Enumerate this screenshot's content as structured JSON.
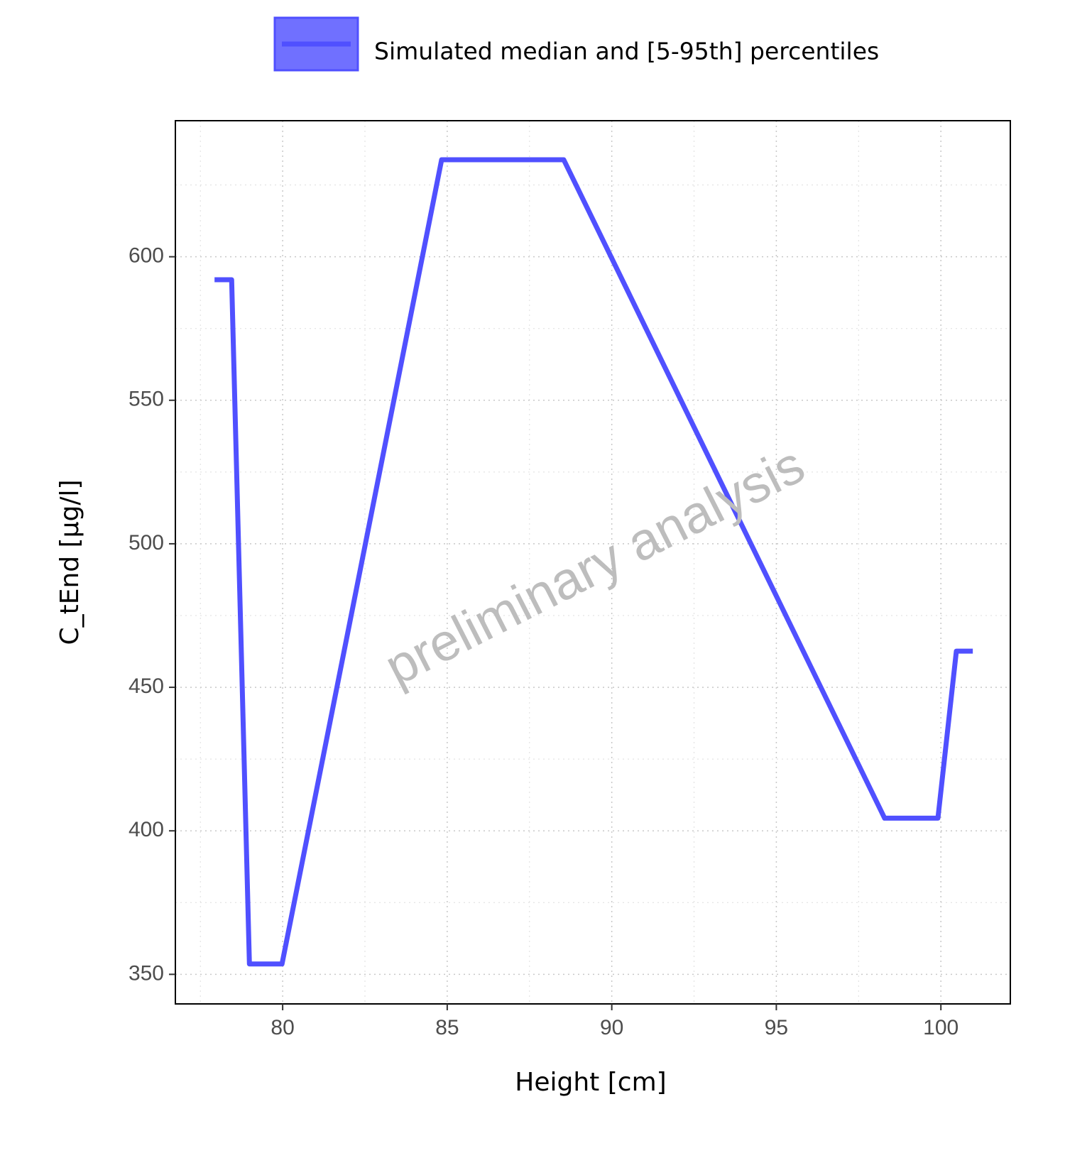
{
  "chart_data": {
    "type": "line",
    "x_label": "Height [cm]",
    "y_label": "C_tEnd [µg/l]",
    "watermark": "preliminary analysis",
    "xlim": [
      76.74,
      102.11
    ],
    "ylim": [
      339.7,
      647.4
    ],
    "xticks": [
      80,
      85,
      90,
      95,
      100
    ],
    "yticks": [
      350,
      400,
      450,
      500,
      550,
      600
    ],
    "xminorticks": [
      77.5,
      82.5,
      87.5,
      92.5,
      97.5,
      102.5
    ],
    "yminorticks": [
      375,
      425,
      475,
      525,
      575,
      625
    ],
    "grid": true,
    "legend": "top",
    "series": [
      {
        "name": "Simulated median and [5-95th] percentiles",
        "color": "#5050ff",
        "x": [
          77.93,
          78.45,
          78.99,
          79.98,
          84.83,
          88.54,
          98.29,
          99.91,
          100.47,
          100.97
        ],
        "values": [
          592,
          592,
          353.6,
          353.6,
          633.8,
          633.8,
          404.4,
          404.4,
          462.6,
          462.6
        ]
      }
    ]
  }
}
